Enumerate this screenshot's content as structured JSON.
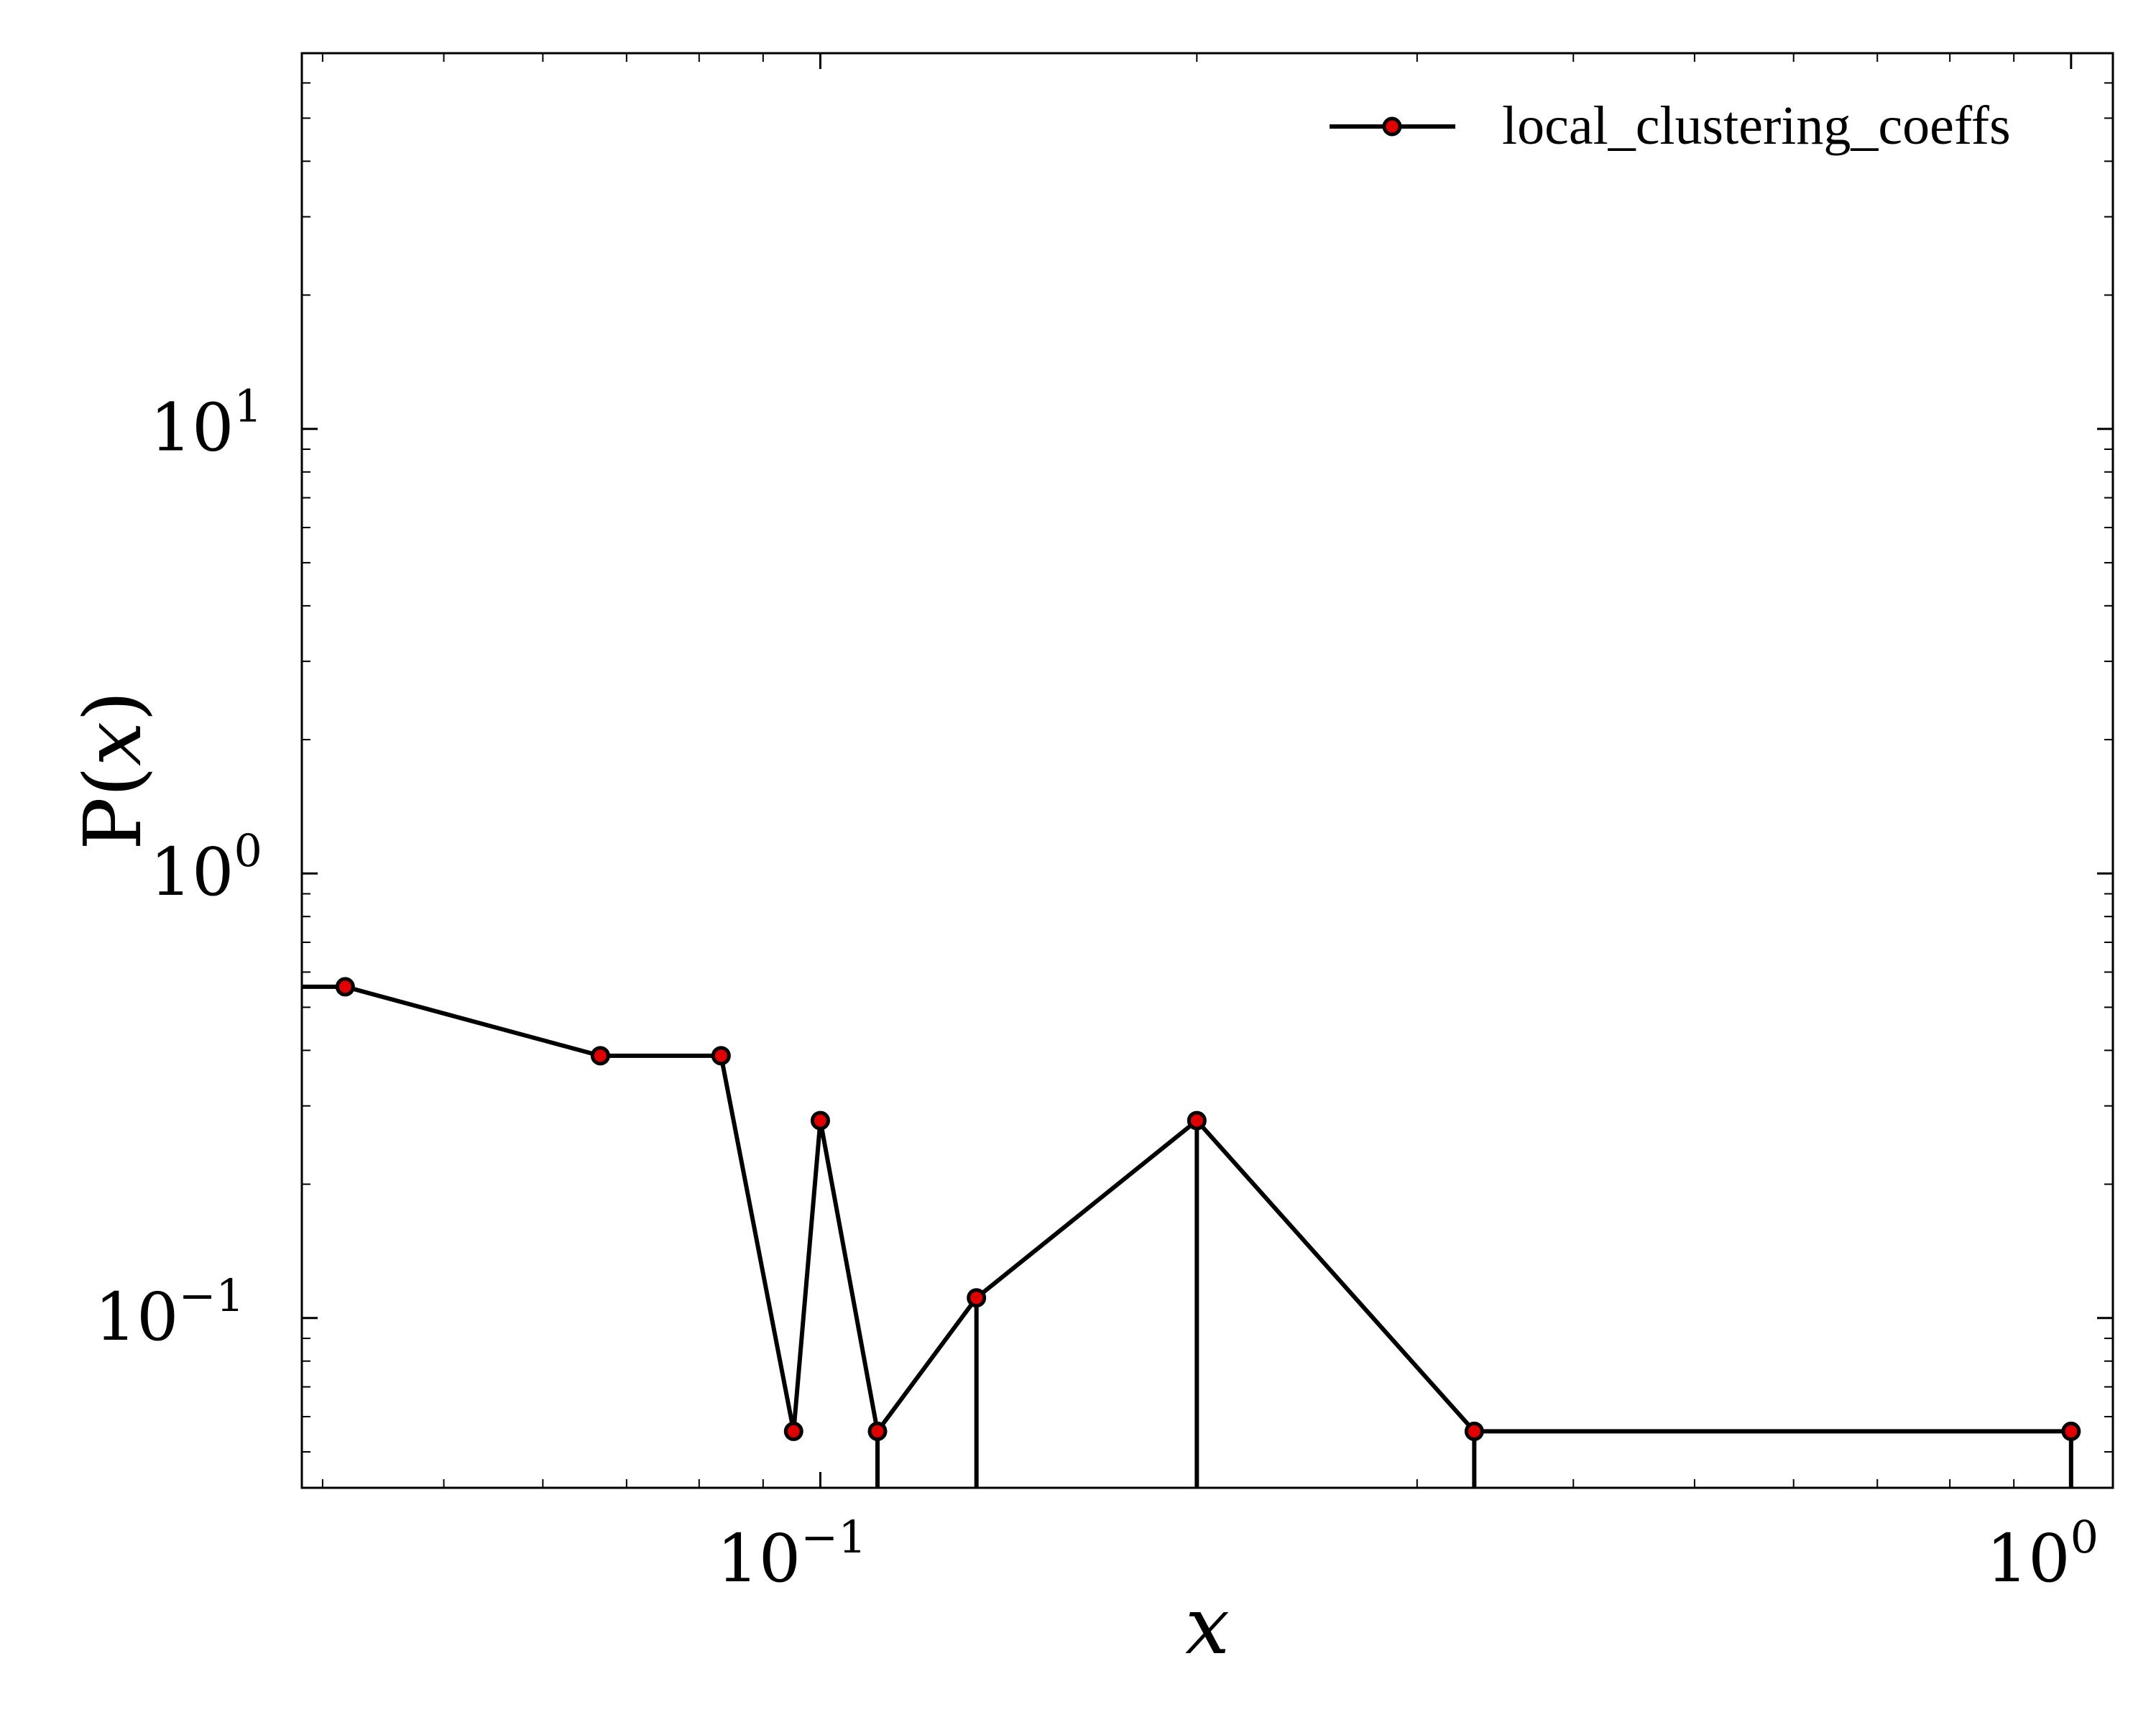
{
  "chart_data": {
    "type": "line",
    "xscale": "log",
    "yscale": "log",
    "xlim": [
      0.0385,
      1.08
    ],
    "ylim": [
      0.0415,
      70
    ],
    "xlabel": "x",
    "ylabel": "P(x)",
    "xlabel_left": "",
    "ylabel_left": "P(",
    "ylabel_var": "x",
    "ylabel_right": ")",
    "grid": false,
    "legend_position": "top-right",
    "x_ticks": [
      {
        "value": 0.1,
        "base": "10",
        "exp": "−1"
      },
      {
        "value": 1.0,
        "base": "10",
        "exp": "0"
      }
    ],
    "y_ticks": [
      {
        "value": 0.1,
        "base": "10",
        "exp": "−1"
      },
      {
        "value": 1.0,
        "base": "10",
        "exp": "0"
      },
      {
        "value": 10.0,
        "base": "10",
        "exp": "1"
      }
    ],
    "series": [
      {
        "name": "local_clustering_coeffs",
        "line_color": "#000000",
        "marker_color": "#e00000",
        "x": [
          0.0385,
          0.0417,
          0.0667,
          0.0833,
          0.0952,
          0.1,
          0.1111,
          0.1333,
          0.2,
          0.3333,
          1.0
        ],
        "y": [
          0.556,
          0.556,
          0.389,
          0.389,
          0.0556,
          0.278,
          0.0556,
          0.111,
          0.278,
          0.0556,
          0.0556
        ]
      }
    ]
  }
}
